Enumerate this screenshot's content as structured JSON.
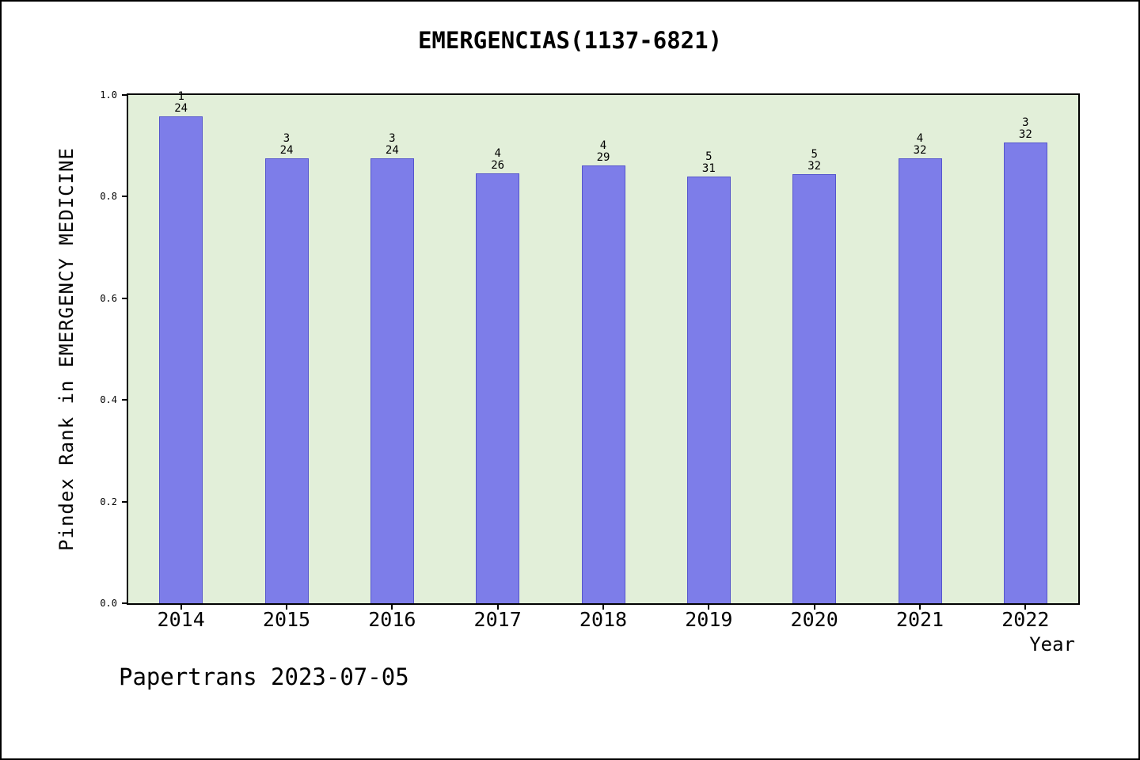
{
  "footer": "Papertrans 2023-07-05",
  "chart_data": {
    "type": "bar",
    "title": "EMERGENCIAS(1137-6821)",
    "xlabel": "Year",
    "ylabel": "Pindex Rank in EMERGENCY MEDICINE",
    "categories": [
      "2014",
      "2015",
      "2016",
      "2017",
      "2018",
      "2019",
      "2020",
      "2021",
      "2022"
    ],
    "values": [
      0.958,
      0.875,
      0.875,
      0.846,
      0.862,
      0.839,
      0.844,
      0.875,
      0.906
    ],
    "bar_labels": [
      {
        "rank": "1",
        "total": "24"
      },
      {
        "rank": "3",
        "total": "24"
      },
      {
        "rank": "3",
        "total": "24"
      },
      {
        "rank": "4",
        "total": "26"
      },
      {
        "rank": "4",
        "total": "29"
      },
      {
        "rank": "5",
        "total": "31"
      },
      {
        "rank": "5",
        "total": "32"
      },
      {
        "rank": "4",
        "total": "32"
      },
      {
        "rank": "3",
        "total": "32"
      }
    ],
    "ylim": [
      0.0,
      1.0
    ],
    "yticks": [
      "0.0",
      "0.2",
      "0.4",
      "0.6",
      "0.8",
      "1.0"
    ],
    "grid": false,
    "legend": false,
    "colors": {
      "bar_fill": "#7d7de9",
      "bar_edge": "#5555cc",
      "plot_background": "#e2efd9",
      "figure_background": "#ffffff",
      "text": "#000000"
    }
  }
}
